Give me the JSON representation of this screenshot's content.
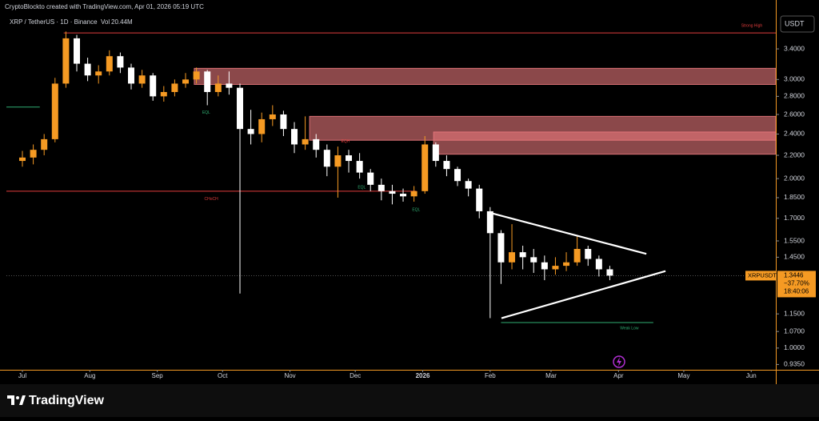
{
  "header": {
    "credit": "CryptoBlockto created with TradingView.com, Apr 01, 2026 05:19 UTC"
  },
  "footer": {
    "brand": "TradingView"
  },
  "chart_data": {
    "type": "candlestick",
    "title": "XRP / TetherUS · 1D · Binance",
    "volume_label": "Vol",
    "volume": "20.44M",
    "currency": "USDT",
    "log_scale": true,
    "up_color": "#f59a23",
    "down_color": "#ffffff",
    "x": [
      0,
      5,
      10,
      15,
      20,
      25,
      30,
      35,
      40,
      45,
      50,
      55,
      60,
      65,
      70,
      75,
      80,
      85,
      90,
      95,
      100,
      105,
      110,
      115,
      120,
      125,
      130,
      135,
      140,
      145,
      150,
      155,
      160,
      165,
      170,
      175,
      180,
      185,
      190,
      195,
      200,
      205,
      210,
      215,
      220,
      225,
      230,
      235,
      240,
      245,
      250,
      255,
      260,
      265,
      270
    ],
    "open": [
      2.15,
      2.18,
      2.25,
      2.35,
      2.95,
      3.55,
      3.2,
      3.05,
      3.1,
      3.3,
      3.15,
      2.95,
      3.05,
      2.8,
      2.85,
      2.95,
      3.0,
      3.1,
      2.85,
      2.95,
      2.9,
      2.45,
      2.4,
      2.55,
      2.6,
      2.45,
      2.3,
      2.35,
      2.25,
      2.1,
      2.2,
      2.15,
      2.05,
      1.95,
      1.9,
      1.88,
      1.86,
      1.9,
      2.3,
      2.15,
      2.08,
      1.98,
      1.92,
      1.75,
      1.6,
      1.42,
      1.48,
      1.45,
      1.42,
      1.38,
      1.4,
      1.42,
      1.5,
      1.44,
      1.38
    ],
    "high": [
      2.24,
      2.3,
      2.4,
      3.02,
      3.65,
      3.6,
      3.28,
      3.18,
      3.38,
      3.35,
      3.2,
      3.12,
      3.08,
      2.92,
      3.0,
      3.08,
      3.15,
      3.12,
      3.05,
      3.1,
      2.95,
      2.65,
      2.62,
      2.7,
      2.64,
      2.52,
      2.58,
      2.4,
      2.3,
      2.28,
      2.25,
      2.22,
      2.08,
      2.0,
      1.95,
      1.92,
      1.94,
      2.38,
      2.32,
      2.2,
      2.1,
      2.0,
      1.95,
      1.78,
      1.62,
      1.66,
      1.52,
      1.5,
      1.46,
      1.45,
      1.48,
      1.58,
      1.52,
      1.46,
      1.4
    ],
    "low": [
      2.1,
      2.12,
      2.2,
      2.32,
      2.9,
      3.1,
      2.98,
      2.95,
      3.05,
      3.08,
      2.88,
      2.9,
      2.75,
      2.74,
      2.8,
      2.9,
      2.95,
      2.7,
      2.8,
      2.82,
      1.25,
      2.3,
      2.32,
      2.48,
      2.38,
      2.22,
      2.25,
      2.18,
      2.02,
      1.85,
      2.05,
      2.0,
      1.9,
      1.83,
      1.8,
      1.82,
      1.82,
      1.88,
      2.1,
      2.02,
      1.94,
      1.86,
      1.7,
      1.13,
      1.3,
      1.38,
      1.38,
      1.36,
      1.32,
      1.35,
      1.37,
      1.4,
      1.4,
      1.34,
      1.32
    ],
    "close": [
      2.18,
      2.25,
      2.35,
      2.95,
      3.55,
      3.2,
      3.05,
      3.1,
      3.3,
      3.15,
      2.95,
      3.05,
      2.8,
      2.85,
      2.95,
      3.0,
      3.1,
      2.85,
      2.95,
      2.9,
      2.45,
      2.4,
      2.55,
      2.6,
      2.45,
      2.3,
      2.35,
      2.25,
      2.1,
      2.2,
      2.15,
      2.05,
      1.95,
      1.9,
      1.88,
      1.86,
      1.9,
      2.3,
      2.15,
      2.08,
      1.98,
      1.92,
      1.75,
      1.6,
      1.42,
      1.48,
      1.45,
      1.42,
      1.38,
      1.4,
      1.42,
      1.5,
      1.44,
      1.38,
      1.345
    ],
    "xlim": [
      -7.35,
      346.3
    ],
    "ylim": [
      0.915,
      3.915
    ],
    "xticks": [
      {
        "value": 0,
        "label": "Jul"
      },
      {
        "value": 31,
        "label": "Aug"
      },
      {
        "value": 62,
        "label": "Sep"
      },
      {
        "value": 92,
        "label": "Oct"
      },
      {
        "value": 123,
        "label": "Nov"
      },
      {
        "value": 153,
        "label": "Dec"
      },
      {
        "value": 184,
        "label": "2026"
      },
      {
        "value": 215,
        "label": "Feb"
      },
      {
        "value": 243,
        "label": "Mar"
      },
      {
        "value": 274,
        "label": "Apr"
      },
      {
        "value": 304,
        "label": "May"
      },
      {
        "value": 335,
        "label": "Jun"
      }
    ],
    "yticks": [
      {
        "value": 3.4,
        "label": "3.4000"
      },
      {
        "value": 3.0,
        "label": "3.0000"
      },
      {
        "value": 2.8,
        "label": "2.8000"
      },
      {
        "value": 2.6,
        "label": "2.6000"
      },
      {
        "value": 2.4,
        "label": "2.4000"
      },
      {
        "value": 2.2,
        "label": "2.2000"
      },
      {
        "value": 2.0,
        "label": "2.0000"
      },
      {
        "value": 1.85,
        "label": "1.8500"
      },
      {
        "value": 1.7,
        "label": "1.7000"
      },
      {
        "value": 1.55,
        "label": "1.5500"
      },
      {
        "value": 1.45,
        "label": "1.4500"
      },
      {
        "value": 1.15,
        "label": "1.1500"
      },
      {
        "value": 1.07,
        "label": "1.0700"
      },
      {
        "value": 1.0,
        "label": "1.0000"
      },
      {
        "value": 0.935,
        "label": "0.9350"
      }
    ],
    "zones": [
      {
        "x0": 79,
        "top": 3.14,
        "bottom": 2.94,
        "color": "#e8787c"
      },
      {
        "x0": 132,
        "top": 2.58,
        "bottom": 2.34,
        "color": "#e8787c"
      },
      {
        "x0": 189,
        "top": 2.42,
        "bottom": 2.21,
        "color": "#e8787c"
      }
    ],
    "levels": [
      {
        "label": "Strong High",
        "value": 3.63,
        "x0": 19,
        "x1": 346.3,
        "color": "#e03c3c"
      },
      {
        "label": "CHoCH",
        "value": 1.9,
        "x0": -7.35,
        "x1": 181,
        "color": "#e03c3c"
      },
      {
        "value": 2.68,
        "x0": -7.35,
        "x1": 8,
        "color": "#2fae72"
      },
      {
        "label": "Weak Low",
        "value": 1.11,
        "x0": 220,
        "x1": 290,
        "color": "#2fae72"
      }
    ],
    "annotations": [
      {
        "text": "EQL",
        "x": 84.5,
        "price": 2.62,
        "color": "#2fae72"
      },
      {
        "text": "EQH",
        "x": 148.5,
        "price": 2.33,
        "color": "#e03c3c"
      },
      {
        "text": "EQL",
        "x": 156,
        "price": 1.93,
        "color": "#2fae72"
      },
      {
        "text": "EQL",
        "x": 181,
        "price": 1.76,
        "color": "#2fae72"
      }
    ],
    "trendlines": [
      {
        "x": [
          214.7,
          286.8
        ],
        "y": [
          1.74,
          1.47
        ]
      },
      {
        "x": [
          220.2,
          295.6
        ],
        "y": [
          1.13,
          1.37
        ]
      }
    ],
    "price_tag": {
      "symbol": "XRPUSDT",
      "price": 1.3446,
      "change": "−37.70%",
      "countdown": "18:40:06",
      "color": "#f59a23"
    }
  }
}
